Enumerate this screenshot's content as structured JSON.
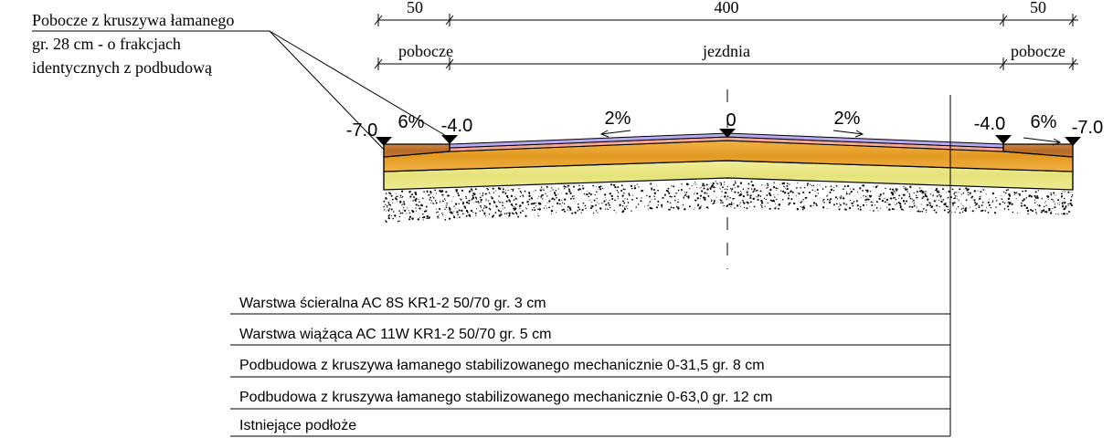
{
  "dimensions": {
    "top": [
      "50",
      "400",
      "50"
    ],
    "labels": [
      "pobocze",
      "jezdnia",
      "pobocze"
    ]
  },
  "shoulder_note": [
    "Pobocze z kruszywa łamanego",
    "gr. 28 cm - o frakcjach",
    "identycznych z podbudową"
  ],
  "elevations": {
    "left_outer": "-7.0",
    "left_inner": "-4.0",
    "center": "0",
    "right_inner": "-4.0",
    "right_outer": "-7.0"
  },
  "slopes": {
    "left_shoulder": "6%",
    "left_lane": "2%",
    "right_lane": "2%",
    "right_shoulder": "6%"
  },
  "legend": [
    "Warstwa ścieralna AC 8S KR1-2 50/70 gr. 3 cm",
    "Warstwa wiążąca AC 11W KR1-2 50/70 gr. 5 cm",
    "Podbudowa z kruszywa łamanego stabilizowanego mechanicznie 0-31,5 gr. 8 cm",
    "Podbudowa z kruszywa łamanego stabilizowanego mechanicznie 0-63,0 gr. 12 cm",
    "Istniejące podłoże"
  ],
  "colors": {
    "wearing": "#b9a9f2",
    "binder": "#f5a890",
    "base_upper": "#e8a52e",
    "base_lower": "#ece889",
    "shoulder": "#c07532"
  }
}
